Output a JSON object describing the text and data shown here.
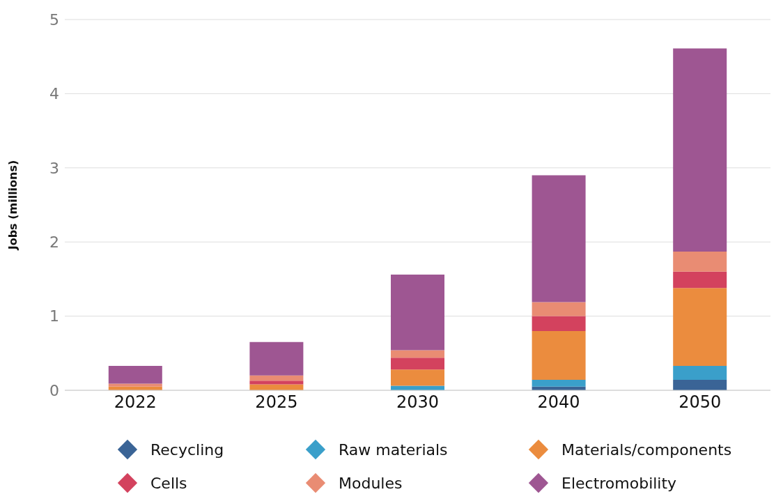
{
  "chart_data": {
    "type": "bar",
    "stacked": true,
    "ylabel": "Jobs (millions)",
    "categories": [
      "2022",
      "2025",
      "2030",
      "2040",
      "2050"
    ],
    "series": [
      {
        "name": "Recycling",
        "color": "#3a6496",
        "values": [
          0,
          0,
          0,
          0.05,
          0.14
        ]
      },
      {
        "name": "Raw materials",
        "color": "#3a9fca",
        "values": [
          0,
          0,
          0.06,
          0.09,
          0.19
        ]
      },
      {
        "name": "Materials/components",
        "color": "#eb8c3e",
        "values": [
          0.05,
          0.08,
          0.22,
          0.66,
          1.05
        ]
      },
      {
        "name": "Cells",
        "color": "#d3425e",
        "values": [
          0,
          0.05,
          0.16,
          0.2,
          0.22
        ]
      },
      {
        "name": "Modules",
        "color": "#e98c73",
        "values": [
          0.04,
          0.07,
          0.1,
          0.19,
          0.27
        ]
      },
      {
        "name": "Electromobility",
        "color": "#9e5692",
        "values": [
          0.24,
          0.45,
          1.02,
          1.71,
          2.74
        ]
      }
    ],
    "ylim": [
      0,
      5
    ],
    "yticks": [
      0,
      1,
      2,
      3,
      4,
      5
    ],
    "grid": "y",
    "legend": "bottom",
    "marker": "diamond"
  }
}
